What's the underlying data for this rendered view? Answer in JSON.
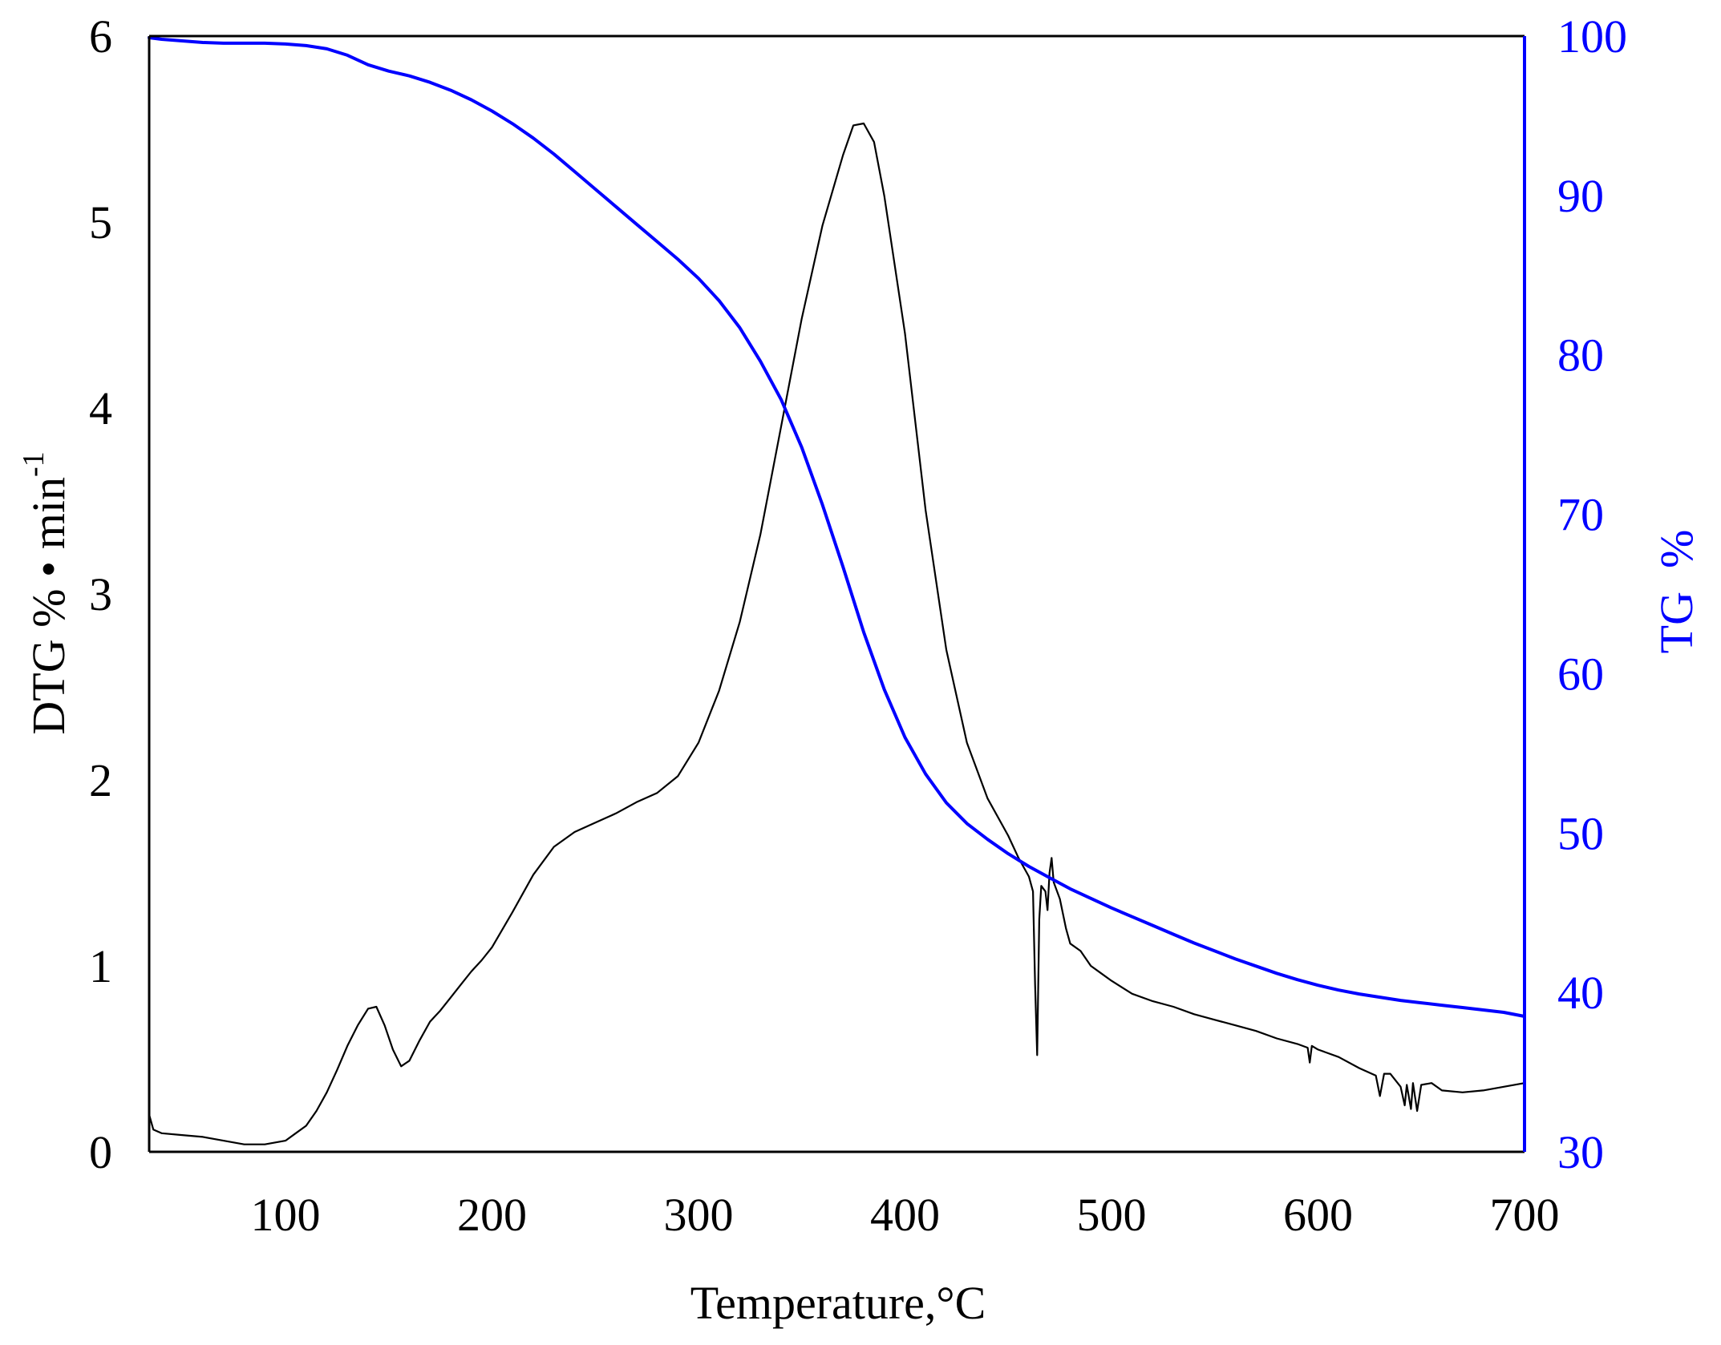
{
  "chart_data": {
    "type": "line",
    "xlabel": "Temperature,°C",
    "ylabel_left_main": "DTG % • min",
    "ylabel_left_sup": "-1",
    "ylabel_right": "TG  %",
    "xlim": [
      34,
      700
    ],
    "ylim_left": [
      0,
      6
    ],
    "ylim_right": [
      30,
      100
    ],
    "xticks": [
      "100",
      "200",
      "300",
      "400",
      "500",
      "600",
      "700"
    ],
    "yticks_left": [
      "0",
      "1",
      "2",
      "3",
      "4",
      "5",
      "6"
    ],
    "yticks_right": [
      "30",
      "40",
      "50",
      "60",
      "70",
      "80",
      "90",
      "100"
    ],
    "grid": false,
    "legend": "none",
    "series": [
      {
        "axis": "left",
        "color": "#000000",
        "points": [
          [
            34,
            0.2
          ],
          [
            36,
            0.12
          ],
          [
            40,
            0.1
          ],
          [
            50,
            0.09
          ],
          [
            60,
            0.08
          ],
          [
            70,
            0.06
          ],
          [
            80,
            0.04
          ],
          [
            90,
            0.04
          ],
          [
            100,
            0.06
          ],
          [
            105,
            0.1
          ],
          [
            110,
            0.14
          ],
          [
            115,
            0.22
          ],
          [
            120,
            0.32
          ],
          [
            125,
            0.44
          ],
          [
            130,
            0.57
          ],
          [
            135,
            0.68
          ],
          [
            140,
            0.77
          ],
          [
            144,
            0.78
          ],
          [
            148,
            0.68
          ],
          [
            152,
            0.55
          ],
          [
            156,
            0.46
          ],
          [
            160,
            0.49
          ],
          [
            165,
            0.6
          ],
          [
            170,
            0.7
          ],
          [
            175,
            0.76
          ],
          [
            180,
            0.83
          ],
          [
            185,
            0.9
          ],
          [
            190,
            0.97
          ],
          [
            195,
            1.03
          ],
          [
            200,
            1.1
          ],
          [
            210,
            1.29
          ],
          [
            220,
            1.49
          ],
          [
            230,
            1.64
          ],
          [
            240,
            1.72
          ],
          [
            250,
            1.77
          ],
          [
            260,
            1.82
          ],
          [
            270,
            1.88
          ],
          [
            280,
            1.93
          ],
          [
            290,
            2.02
          ],
          [
            300,
            2.2
          ],
          [
            310,
            2.48
          ],
          [
            320,
            2.85
          ],
          [
            330,
            3.32
          ],
          [
            340,
            3.9
          ],
          [
            350,
            4.48
          ],
          [
            360,
            4.98
          ],
          [
            370,
            5.36
          ],
          [
            375,
            5.52
          ],
          [
            380,
            5.53
          ],
          [
            385,
            5.43
          ],
          [
            390,
            5.14
          ],
          [
            400,
            4.4
          ],
          [
            410,
            3.45
          ],
          [
            420,
            2.7
          ],
          [
            430,
            2.2
          ],
          [
            440,
            1.9
          ],
          [
            450,
            1.7
          ],
          [
            455,
            1.58
          ],
          [
            460,
            1.48
          ],
          [
            462,
            1.4
          ],
          [
            463,
            0.9
          ],
          [
            464,
            0.52
          ],
          [
            465,
            1.25
          ],
          [
            466,
            1.43
          ],
          [
            468,
            1.4
          ],
          [
            469,
            1.3
          ],
          [
            470,
            1.5
          ],
          [
            471,
            1.58
          ],
          [
            472,
            1.45
          ],
          [
            475,
            1.36
          ],
          [
            478,
            1.2
          ],
          [
            480,
            1.12
          ],
          [
            485,
            1.08
          ],
          [
            490,
            1.0
          ],
          [
            495,
            0.96
          ],
          [
            500,
            0.92
          ],
          [
            510,
            0.85
          ],
          [
            520,
            0.81
          ],
          [
            530,
            0.78
          ],
          [
            540,
            0.74
          ],
          [
            550,
            0.71
          ],
          [
            560,
            0.68
          ],
          [
            570,
            0.65
          ],
          [
            580,
            0.61
          ],
          [
            590,
            0.58
          ],
          [
            595,
            0.56
          ],
          [
            596,
            0.48
          ],
          [
            597,
            0.57
          ],
          [
            600,
            0.55
          ],
          [
            610,
            0.51
          ],
          [
            620,
            0.45
          ],
          [
            628,
            0.41
          ],
          [
            630,
            0.3
          ],
          [
            632,
            0.42
          ],
          [
            635,
            0.42
          ],
          [
            640,
            0.35
          ],
          [
            642,
            0.25
          ],
          [
            643,
            0.36
          ],
          [
            645,
            0.23
          ],
          [
            646,
            0.37
          ],
          [
            648,
            0.22
          ],
          [
            650,
            0.36
          ],
          [
            655,
            0.37
          ],
          [
            660,
            0.33
          ],
          [
            670,
            0.32
          ],
          [
            680,
            0.33
          ],
          [
            690,
            0.35
          ],
          [
            700,
            0.37
          ]
        ]
      },
      {
        "axis": "right",
        "color": "#0000ff",
        "points": [
          [
            34,
            99.9
          ],
          [
            40,
            99.8
          ],
          [
            50,
            99.7
          ],
          [
            60,
            99.6
          ],
          [
            70,
            99.55
          ],
          [
            80,
            99.55
          ],
          [
            90,
            99.55
          ],
          [
            100,
            99.5
          ],
          [
            110,
            99.4
          ],
          [
            120,
            99.2
          ],
          [
            130,
            98.8
          ],
          [
            140,
            98.2
          ],
          [
            150,
            97.8
          ],
          [
            160,
            97.5
          ],
          [
            170,
            97.1
          ],
          [
            180,
            96.6
          ],
          [
            190,
            96.0
          ],
          [
            200,
            95.3
          ],
          [
            210,
            94.5
          ],
          [
            220,
            93.6
          ],
          [
            230,
            92.6
          ],
          [
            240,
            91.5
          ],
          [
            250,
            90.4
          ],
          [
            260,
            89.3
          ],
          [
            270,
            88.2
          ],
          [
            280,
            87.1
          ],
          [
            290,
            86.0
          ],
          [
            300,
            84.8
          ],
          [
            310,
            83.4
          ],
          [
            320,
            81.7
          ],
          [
            330,
            79.6
          ],
          [
            340,
            77.2
          ],
          [
            350,
            74.2
          ],
          [
            360,
            70.6
          ],
          [
            370,
            66.7
          ],
          [
            380,
            62.6
          ],
          [
            390,
            59.0
          ],
          [
            400,
            56.0
          ],
          [
            410,
            53.7
          ],
          [
            420,
            51.9
          ],
          [
            430,
            50.6
          ],
          [
            440,
            49.6
          ],
          [
            450,
            48.7
          ],
          [
            460,
            47.9
          ],
          [
            470,
            47.2
          ],
          [
            480,
            46.5
          ],
          [
            490,
            45.9
          ],
          [
            500,
            45.3
          ],
          [
            510,
            44.75
          ],
          [
            520,
            44.2
          ],
          [
            530,
            43.65
          ],
          [
            540,
            43.1
          ],
          [
            550,
            42.6
          ],
          [
            560,
            42.1
          ],
          [
            570,
            41.65
          ],
          [
            580,
            41.2
          ],
          [
            590,
            40.8
          ],
          [
            600,
            40.45
          ],
          [
            610,
            40.15
          ],
          [
            620,
            39.9
          ],
          [
            630,
            39.7
          ],
          [
            640,
            39.5
          ],
          [
            650,
            39.35
          ],
          [
            660,
            39.2
          ],
          [
            670,
            39.05
          ],
          [
            680,
            38.9
          ],
          [
            690,
            38.75
          ],
          [
            700,
            38.5
          ]
        ]
      }
    ]
  },
  "colors": {
    "left_axis": "#000000",
    "right_axis": "#0000ff",
    "background": "#ffffff"
  }
}
